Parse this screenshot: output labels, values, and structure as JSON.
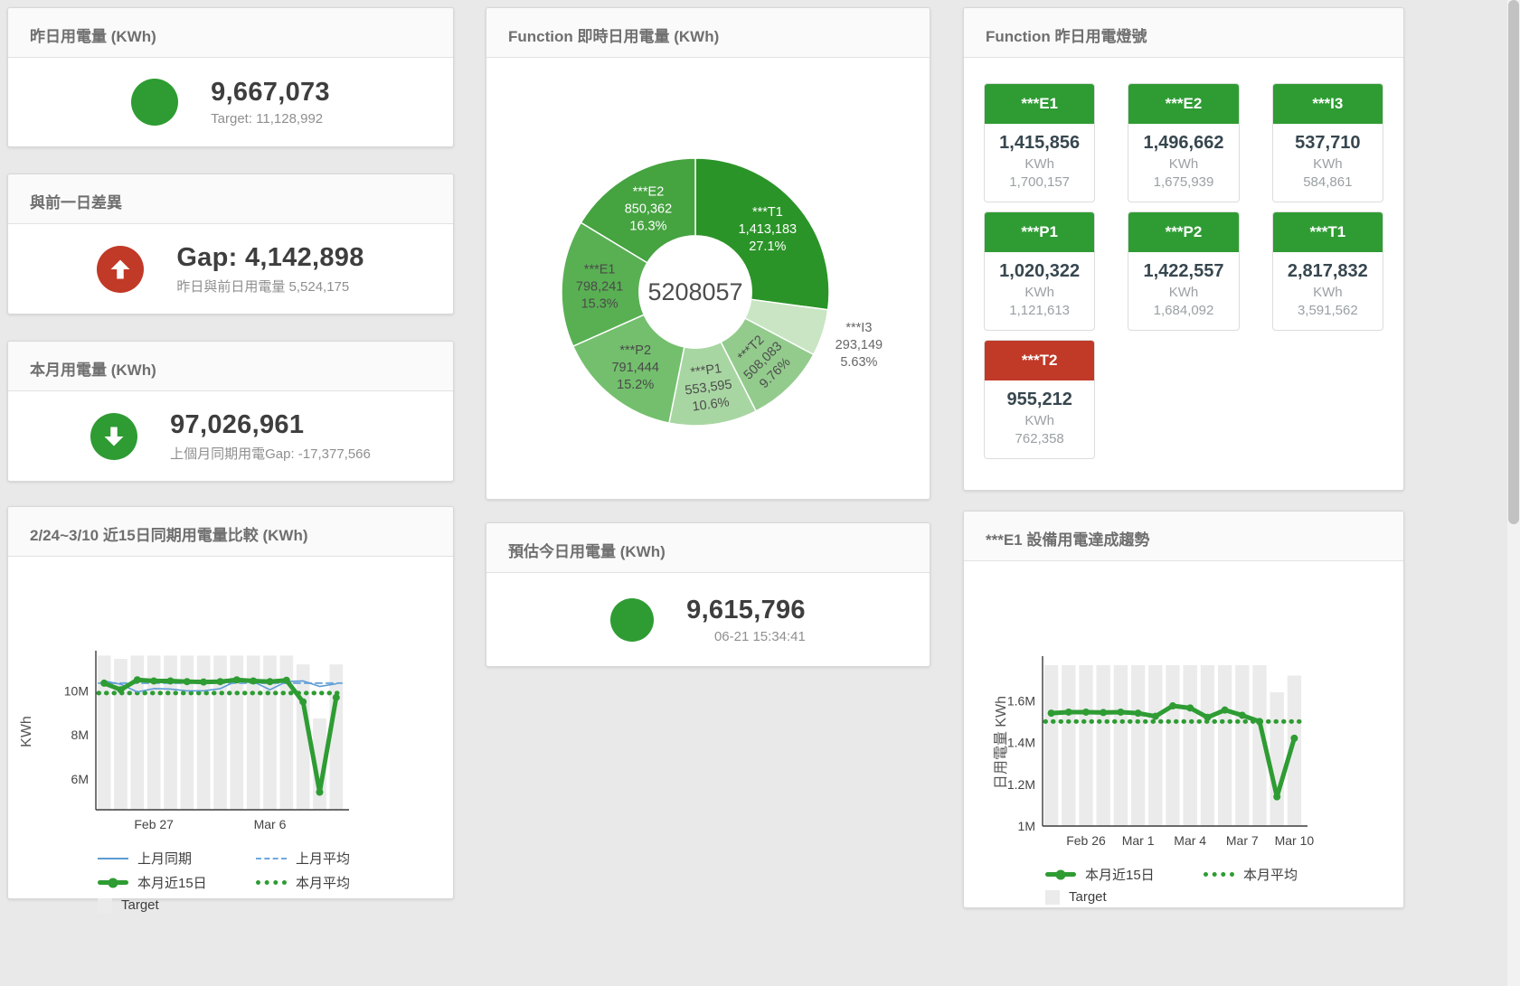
{
  "colors": {
    "green": "#2e9c33",
    "red": "#c13927",
    "blue": "#5b9bd5",
    "blue_light": "#6fa8dc",
    "target_bar": "#ebebeb"
  },
  "cards": {
    "yesterday": {
      "title": "昨日用電量 (KWh)",
      "value": "9,667,073",
      "subtitle": "Target: 11,128,992"
    },
    "diff": {
      "title": "與前一日差異",
      "value": "Gap: 4,142,898",
      "subtitle": "昨日與前日用電量 5,524,175"
    },
    "month": {
      "title": "本月用電量 (KWh)",
      "value": "97,026,961",
      "subtitle": "上個月同期用電Gap: -17,377,566"
    },
    "compare": {
      "title": "2/24~3/10 近15日同期用電量比較 (KWh)"
    },
    "realtime": {
      "title": "Function 即時日用電量 (KWh)"
    },
    "estimate": {
      "title": "預估今日用電量 (KWh)",
      "value": "9,615,796",
      "timestamp": "06-21 15:34:41"
    },
    "lights": {
      "title": "Function 昨日用電燈號",
      "tiles": [
        {
          "label": "***E1",
          "value": "1,415,856",
          "unit": "KWh",
          "target": "1,700,157",
          "status_color": "#2e9c33"
        },
        {
          "label": "***E2",
          "value": "1,496,662",
          "unit": "KWh",
          "target": "1,675,939",
          "status_color": "#2e9c33"
        },
        {
          "label": "***I3",
          "value": "537,710",
          "unit": "KWh",
          "target": "584,861",
          "status_color": "#2e9c33"
        },
        {
          "label": "***P1",
          "value": "1,020,322",
          "unit": "KWh",
          "target": "1,121,613",
          "status_color": "#2e9c33"
        },
        {
          "label": "***P2",
          "value": "1,422,557",
          "unit": "KWh",
          "target": "1,684,092",
          "status_color": "#2e9c33"
        },
        {
          "label": "***T1",
          "value": "2,817,832",
          "unit": "KWh",
          "target": "3,591,562",
          "status_color": "#2e9c33"
        },
        {
          "label": "***T2",
          "value": "955,212",
          "unit": "KWh",
          "target": "762,358",
          "status_color": "#c13927"
        }
      ]
    },
    "trend": {
      "title": "***E1 設備用電達成趨勢"
    }
  },
  "chart_data": [
    {
      "type": "pie",
      "title": "Function 即時日用電量 (KWh)",
      "center_total": "5208057",
      "hole": 0.42,
      "labels": [
        "***T1",
        "***I3",
        "***T2",
        "***P1",
        "***P2",
        "***E1",
        "***E2"
      ],
      "values": [
        1413183,
        293149,
        508083,
        553595,
        791444,
        798241,
        850362
      ],
      "display_values": [
        "1,413,183",
        "293,149",
        "508,083",
        "553,595",
        "791,444",
        "798,241",
        "850,362"
      ],
      "percents": [
        "27.1%",
        "5.63%",
        "9.76%",
        "10.6%",
        "15.2%",
        "15.3%",
        "16.3%"
      ],
      "colors": [
        "#2b9428",
        "#c9e5c4",
        "#93cb8d",
        "#a8d6a2",
        "#73bf6d",
        "#59b053",
        "#45a340"
      ],
      "label_colors": [
        "#ffffff",
        "#666666",
        "#4d4d4d",
        "#4d4d4d",
        "#4a4a4a",
        "#4a4a4a",
        "#ffffff"
      ],
      "label_positions": [
        "inside",
        "outside",
        "inside",
        "inside",
        "inside",
        "inside",
        "inside"
      ]
    },
    {
      "type": "line",
      "title": "2/24~3/10 近15日同期用電量比較 (KWh)",
      "ylabel": "KWh",
      "ylim": [
        4.6,
        11.7
      ],
      "yticks": [
        {
          "value": 6,
          "label": "6M"
        },
        {
          "value": 8,
          "label": "8M"
        },
        {
          "value": 10,
          "label": "10M"
        }
      ],
      "x_count": 15,
      "xticks": [
        {
          "index": 3,
          "label": "Feb 27"
        },
        {
          "index": 10,
          "label": "Mar 6"
        }
      ],
      "series": [
        {
          "name": "Target",
          "type": "bar",
          "color": "#ebebeb",
          "values": [
            11.6,
            11.45,
            11.6,
            11.6,
            11.6,
            11.6,
            11.6,
            11.6,
            11.6,
            11.6,
            11.6,
            11.6,
            11.2,
            8.75,
            11.2
          ]
        },
        {
          "name": "上月平均",
          "type": "line",
          "style": "dashed",
          "color": "#6fa8dc",
          "constant": 10.35
        },
        {
          "name": "本月平均",
          "type": "line",
          "style": "dotted",
          "color": "#2e9c33",
          "constant": 9.9
        },
        {
          "name": "上月同期",
          "type": "line",
          "style": "thin",
          "color": "#5b9bd5",
          "values": [
            10.45,
            10.3,
            9.95,
            10.1,
            10.08,
            10.0,
            10.0,
            10.1,
            10.45,
            10.42,
            10.05,
            10.42,
            10.45,
            10.2,
            10.32
          ]
        },
        {
          "name": "本月近15日",
          "type": "line",
          "style": "thick",
          "color": "#2e9c33",
          "values": [
            10.35,
            10.05,
            10.5,
            10.45,
            10.45,
            10.42,
            10.4,
            10.42,
            10.5,
            10.45,
            10.42,
            10.48,
            9.5,
            5.4,
            9.7
          ]
        }
      ],
      "legend": [
        {
          "label": "上月同期",
          "swatch": "line",
          "color": "#5b9bd5"
        },
        {
          "label": "上月平均",
          "swatch": "dashed",
          "color": "#6fa8dc"
        },
        {
          "label": "本月近15日",
          "swatch": "thick",
          "color": "#2e9c33"
        },
        {
          "label": "本月平均",
          "swatch": "dotted",
          "color": "#2e9c33"
        },
        {
          "label": "Target",
          "swatch": "square",
          "color": "#ebebeb"
        }
      ]
    },
    {
      "type": "line",
      "title": "***E1 設備用電達成趨勢",
      "ylabel": "日用電量 KWh",
      "ylim": [
        1.0,
        1.8
      ],
      "yticks": [
        {
          "value": 1,
          "label": "1M"
        },
        {
          "value": 1.2,
          "label": "1.2M"
        },
        {
          "value": 1.4,
          "label": "1.4M"
        },
        {
          "value": 1.6,
          "label": "1.6M"
        }
      ],
      "x_count": 15,
      "xticks": [
        {
          "index": 2,
          "label": "Feb 26"
        },
        {
          "index": 5,
          "label": "Mar 1"
        },
        {
          "index": 8,
          "label": "Mar 4"
        },
        {
          "index": 11,
          "label": "Mar 7"
        },
        {
          "index": 14,
          "label": "Mar 10"
        }
      ],
      "series": [
        {
          "name": "Target",
          "type": "bar",
          "color": "#ebebeb",
          "values": [
            1.77,
            1.77,
            1.77,
            1.77,
            1.77,
            1.77,
            1.77,
            1.77,
            1.77,
            1.77,
            1.77,
            1.77,
            1.77,
            1.64,
            1.72
          ]
        },
        {
          "name": "本月平均",
          "type": "line",
          "style": "dotted",
          "color": "#2e9c33",
          "constant": 1.5
        },
        {
          "name": "本月近15日",
          "type": "line",
          "style": "thick",
          "color": "#2e9c33",
          "values": [
            1.54,
            1.545,
            1.545,
            1.543,
            1.545,
            1.54,
            1.525,
            1.575,
            1.565,
            1.52,
            1.555,
            1.53,
            1.5,
            1.14,
            1.42
          ]
        }
      ],
      "legend": [
        {
          "label": "本月近15日",
          "swatch": "thick",
          "color": "#2e9c33"
        },
        {
          "label": "本月平均",
          "swatch": "dotted",
          "color": "#2e9c33"
        },
        {
          "label": "Target",
          "swatch": "square",
          "color": "#ebebeb"
        }
      ]
    }
  ]
}
